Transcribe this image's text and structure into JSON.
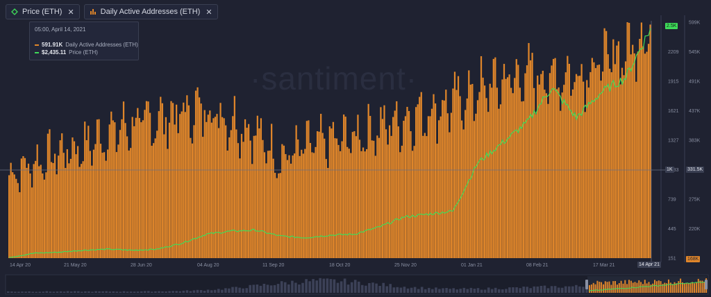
{
  "tabs": [
    {
      "label": "Price (ETH)",
      "icon": "diamond-icon",
      "color": "#3fdc5a"
    },
    {
      "label": "Daily Active Addresses (ETH)",
      "icon": "bars-icon",
      "color": "#e0862a"
    }
  ],
  "tooltip": {
    "date": "05:00, April 14, 2021",
    "rows": [
      {
        "value": "591.91K",
        "label": "Daily Active Addresses (ETH)",
        "color": "#e0862a"
      },
      {
        "value": "$2,435.11",
        "label": "Price (ETH)",
        "color": "#3fdc5a"
      }
    ]
  },
  "watermark": "·santiment·",
  "badges": {
    "price_last": "2.5K",
    "price_cursor": "1K",
    "daa_cursor": "331.5K",
    "daa_min": "168K",
    "x_cursor": "14 Apr 21"
  },
  "colors": {
    "background": "#1f2231",
    "bars": "#e0862a",
    "bars_dark": "#b86a1c",
    "price_line": "#3fdc5a",
    "grid": "#2a2e40"
  },
  "chart_data": {
    "type": "bar",
    "x_ticks": [
      "14 Apr 20",
      "21 May 20",
      "28 Jun 20",
      "04 Aug 20",
      "11 Sep 20",
      "18 Oct 20",
      "25 Nov 20",
      "01 Jan 21",
      "08 Feb 21",
      "17 Mar 21",
      "14 Apr 21"
    ],
    "price_axis_ticks": [
      "151",
      "445",
      "739",
      "1033",
      "1327",
      "1621",
      "1915",
      "2209",
      "2.5K"
    ],
    "daa_axis_ticks": [
      "168K",
      "220K",
      "275K",
      "331.5K",
      "383K",
      "437K",
      "491K",
      "545K",
      "599K"
    ],
    "series": [
      {
        "name": "Daily Active Addresses (ETH)",
        "axis": "right",
        "x": [
          "14 Apr 20",
          "28 Apr 20",
          "12 May 20",
          "26 May 20",
          "09 Jun 20",
          "23 Jun 20",
          "07 Jul 20",
          "21 Jul 20",
          "04 Aug 20",
          "18 Aug 20",
          "01 Sep 20",
          "15 Sep 20",
          "29 Sep 20",
          "13 Oct 20",
          "27 Oct 20",
          "10 Nov 20",
          "24 Nov 20",
          "08 Dec 20",
          "22 Dec 20",
          "05 Jan 21",
          "19 Jan 21",
          "02 Feb 21",
          "16 Feb 21",
          "02 Mar 21",
          "16 Mar 21",
          "30 Mar 21",
          "14 Apr 21"
        ],
        "values": [
          320,
          340,
          360,
          370,
          395,
          410,
          420,
          430,
          440,
          420,
          395,
          350,
          370,
          380,
          390,
          405,
          420,
          435,
          450,
          470,
          490,
          500,
          495,
          505,
          520,
          545,
          592
        ]
      },
      {
        "name": "Price (ETH)",
        "axis": "left",
        "x": [
          "14 Apr 20",
          "28 Apr 20",
          "12 May 20",
          "26 May 20",
          "09 Jun 20",
          "23 Jun 20",
          "07 Jul 20",
          "21 Jul 20",
          "04 Aug 20",
          "18 Aug 20",
          "01 Sep 20",
          "15 Sep 20",
          "29 Sep 20",
          "13 Oct 20",
          "27 Oct 20",
          "10 Nov 20",
          "24 Nov 20",
          "08 Dec 20",
          "22 Dec 20",
          "05 Jan 21",
          "19 Jan 21",
          "02 Feb 21",
          "16 Feb 21",
          "02 Mar 21",
          "16 Mar 21",
          "30 Mar 21",
          "14 Apr 21"
        ],
        "values": [
          158,
          200,
          210,
          230,
          240,
          230,
          240,
          300,
          390,
          420,
          430,
          370,
          355,
          380,
          390,
          460,
          560,
          590,
          620,
          1100,
          1300,
          1500,
          1850,
          1550,
          1800,
          1950,
          2435
        ]
      }
    ]
  }
}
